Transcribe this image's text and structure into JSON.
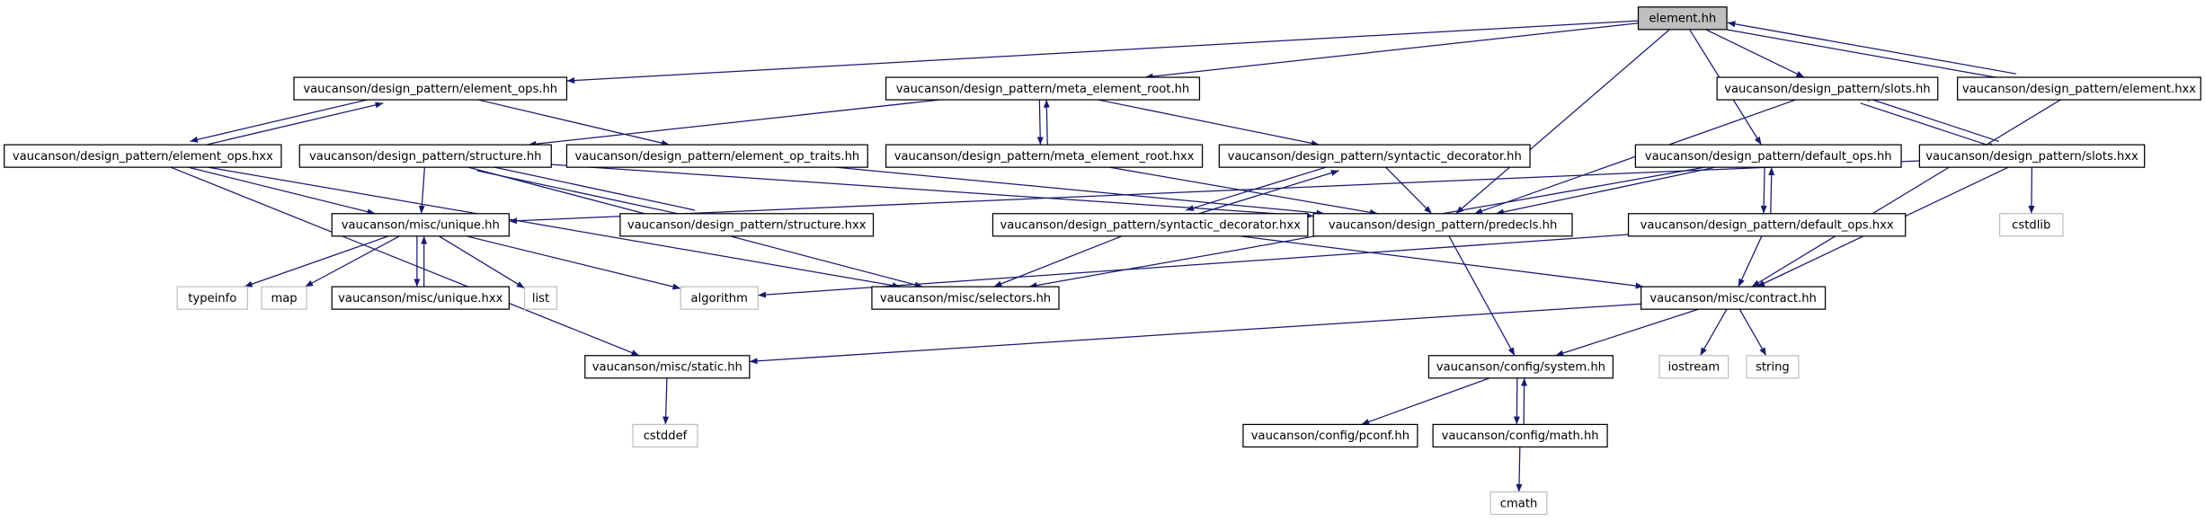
{
  "nodes": [
    {
      "label": "element.hh"
    },
    {
      "label": "vaucanson/design_pattern/element_ops.hh"
    },
    {
      "label": "vaucanson/design_pattern/meta_element_root.hh"
    },
    {
      "label": "vaucanson/design_pattern/slots.hh"
    },
    {
      "label": "vaucanson/design_pattern/element.hxx"
    },
    {
      "label": "vaucanson/design_pattern/element_ops.hxx"
    },
    {
      "label": "vaucanson/design_pattern/structure.hh"
    },
    {
      "label": "vaucanson/design_pattern/element_op_traits.hh"
    },
    {
      "label": "vaucanson/design_pattern/meta_element_root.hxx"
    },
    {
      "label": "vaucanson/design_pattern/syntactic_decorator.hh"
    },
    {
      "label": "vaucanson/design_pattern/default_ops.hh"
    },
    {
      "label": "vaucanson/design_pattern/slots.hxx"
    },
    {
      "label": "vaucanson/misc/unique.hh"
    },
    {
      "label": "vaucanson/design_pattern/structure.hxx"
    },
    {
      "label": "vaucanson/design_pattern/syntactic_decorator.hxx"
    },
    {
      "label": "vaucanson/design_pattern/predecls.hh"
    },
    {
      "label": "vaucanson/design_pattern/default_ops.hxx"
    },
    {
      "label": "cstdlib"
    },
    {
      "label": "typeinfo"
    },
    {
      "label": "map"
    },
    {
      "label": "vaucanson/misc/unique.hxx"
    },
    {
      "label": "list"
    },
    {
      "label": "algorithm"
    },
    {
      "label": "vaucanson/misc/selectors.hh"
    },
    {
      "label": "vaucanson/misc/contract.hh"
    },
    {
      "label": "vaucanson/misc/static.hh"
    },
    {
      "label": "vaucanson/config/system.hh"
    },
    {
      "label": "iostream"
    },
    {
      "label": "string"
    },
    {
      "label": "cstddef"
    },
    {
      "label": "vaucanson/config/pconf.hh"
    },
    {
      "label": "vaucanson/config/math.hh"
    },
    {
      "label": "cmath"
    }
  ]
}
